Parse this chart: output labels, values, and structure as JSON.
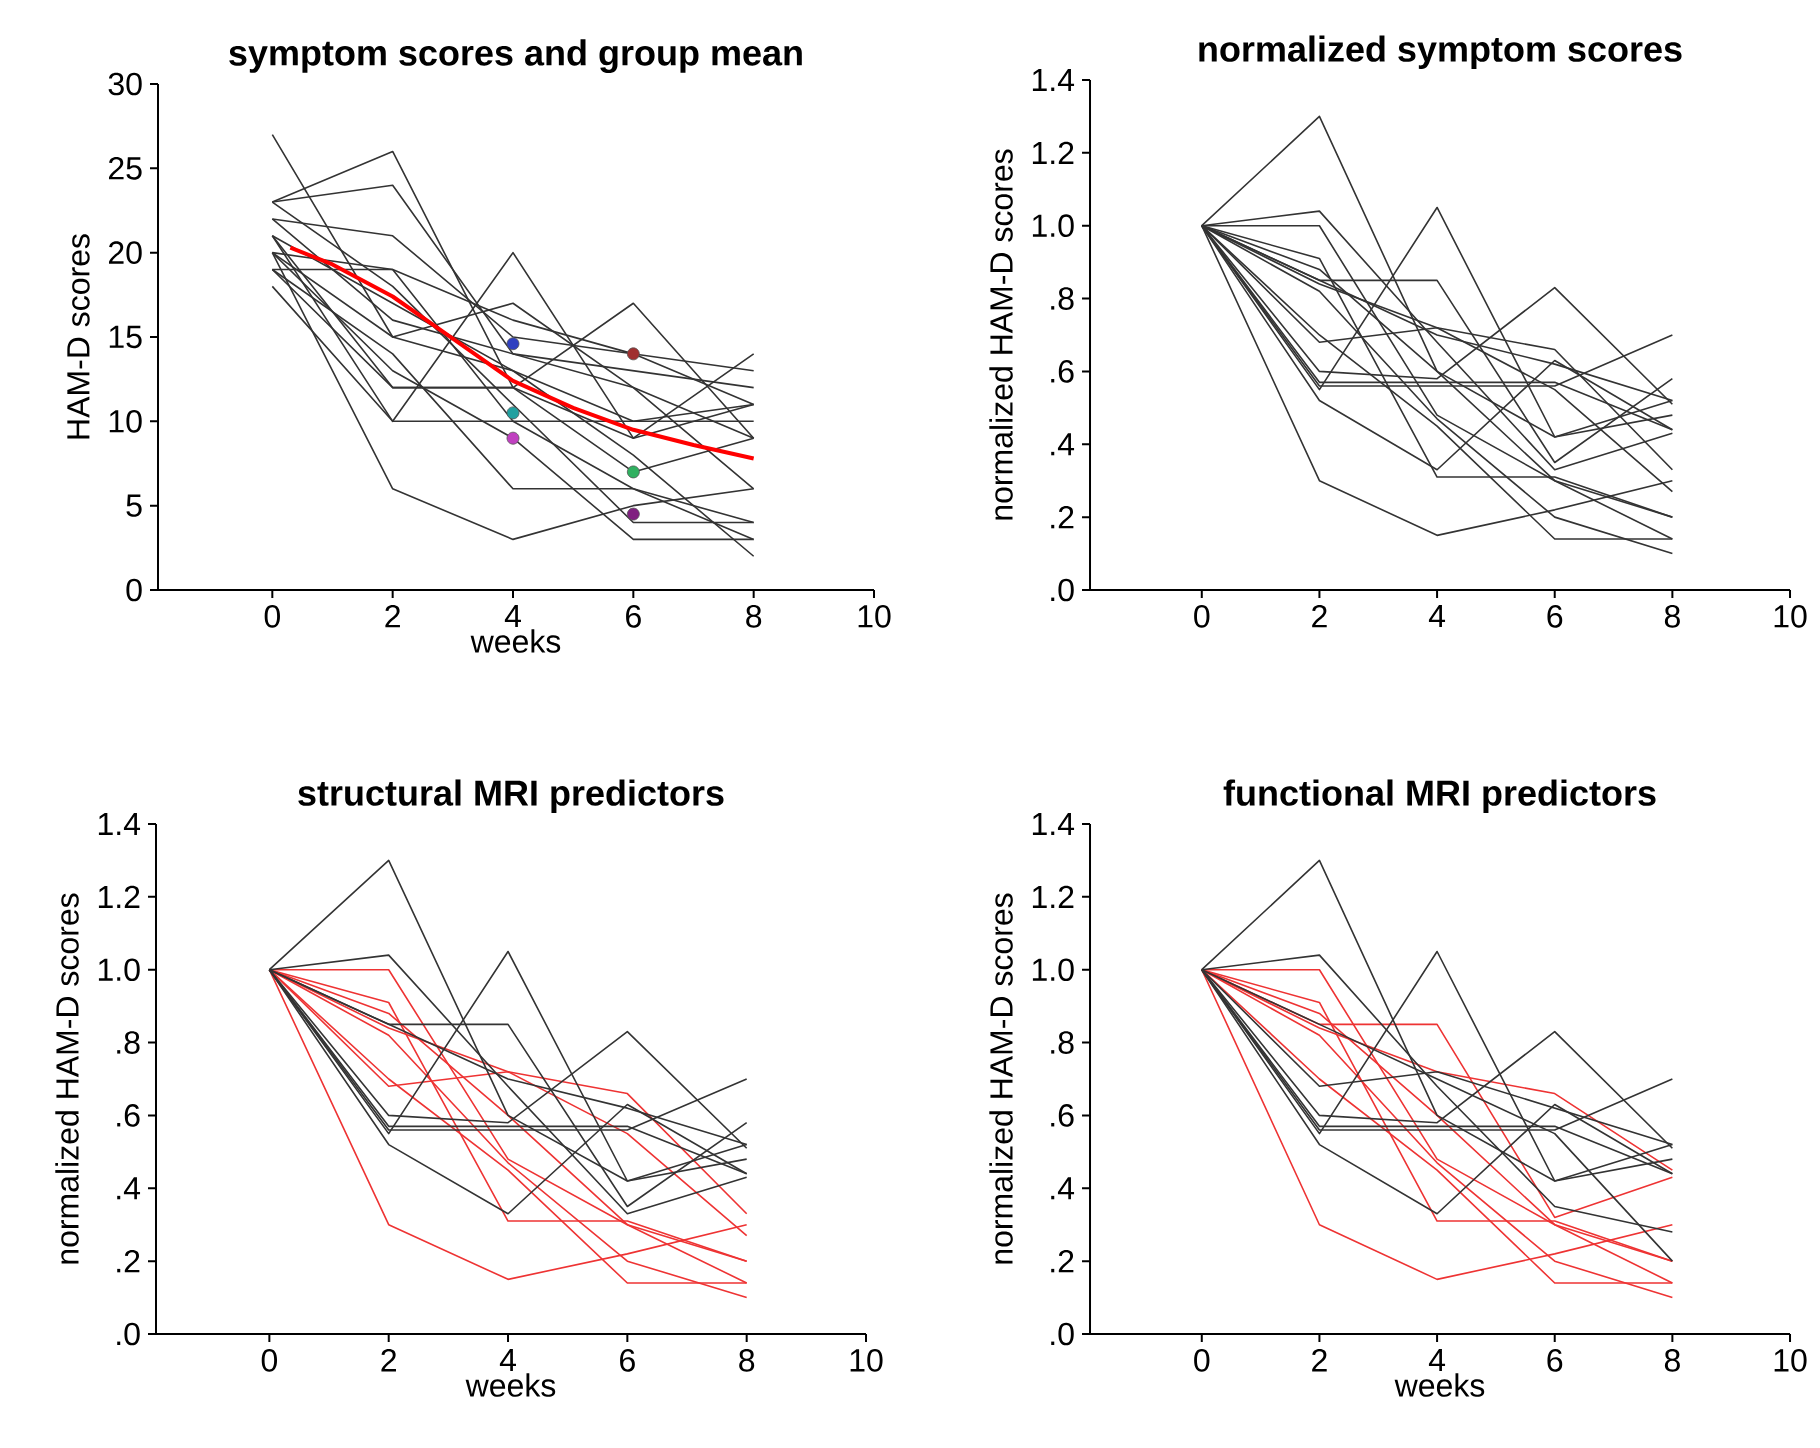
{
  "chart_data": [
    {
      "type": "line",
      "title": "symptom scores and group mean",
      "xlabel": "weeks",
      "ylabel": "HAM-D scores",
      "x": [
        0,
        2,
        4,
        6,
        8
      ],
      "xlim": [
        -1.9,
        10
      ],
      "xticks": [
        0,
        2,
        4,
        6,
        8,
        10
      ],
      "ylim": [
        0,
        30
      ],
      "yticks": [
        0,
        5,
        10,
        15,
        20,
        25,
        30
      ],
      "series": [
        {
          "color": "#333333",
          "values": [
            27,
            15,
            13,
            10,
            10
          ]
        },
        {
          "color": "#333333",
          "values": [
            23,
            26,
            12,
            9,
            11
          ]
        },
        {
          "color": "#333333",
          "values": [
            23,
            24,
            14,
            13,
            12
          ]
        },
        {
          "color": "#333333",
          "values": [
            22,
            21,
            15,
            14,
            13
          ]
        },
        {
          "color": "#333333",
          "values": [
            21,
            10,
            20,
            9,
            14
          ]
        },
        {
          "color": "#333333",
          "values": [
            20,
            19,
            16,
            14,
            11
          ]
        },
        {
          "color": "#333333",
          "values": [
            20,
            6,
            3,
            5,
            6
          ]
        },
        {
          "color": "#333333",
          "values": [
            21,
            12,
            12,
            17,
            9
          ]
        },
        {
          "color": "#333333",
          "values": [
            19,
            19,
            10,
            10,
            11
          ]
        },
        {
          "color": "#333333",
          "values": [
            20,
            15,
            17,
            12,
            9
          ]
        },
        {
          "color": "#333333",
          "values": [
            18,
            10,
            10,
            6,
            4
          ]
        },
        {
          "color": "#333333",
          "values": [
            19,
            14,
            6,
            6,
            3
          ]
        },
        {
          "color": "#333333",
          "values": [
            21,
            17,
            13,
            8,
            2
          ]
        },
        {
          "color": "#333333",
          "values": [
            20,
            13,
            9,
            3,
            3
          ]
        },
        {
          "color": "#333333",
          "values": [
            22,
            16,
            14,
            12,
            6
          ]
        },
        {
          "color": "#333333",
          "values": [
            23,
            18,
            11,
            4,
            4
          ]
        },
        {
          "color": "#333333",
          "values": [
            19,
            12,
            12,
            7,
            9
          ]
        },
        {
          "type": "line",
          "color": "#ff0000",
          "x": [
            0.3,
            1,
            2,
            3,
            4,
            5,
            6,
            7,
            8
          ],
          "values": [
            20.3,
            19.3,
            17.4,
            14.9,
            12.4,
            10.8,
            9.5,
            8.6,
            7.8
          ]
        },
        {
          "type": "scatter",
          "x": [
            4,
            4,
            4,
            6,
            6,
            6
          ],
          "values": [
            14.6,
            10.5,
            9,
            14,
            7,
            4.5
          ],
          "colors": [
            "#3040c0",
            "#20a0a0",
            "#c040c0",
            "#a03030",
            "#30b060",
            "#802080"
          ]
        }
      ]
    },
    {
      "type": "line",
      "title": "normalized symptom scores",
      "ylabel": "normalized HAM-D scores",
      "x": [
        0,
        2,
        4,
        6,
        8
      ],
      "xlim": [
        -1.9,
        10
      ],
      "xticks": [
        0,
        2,
        4,
        6,
        8,
        10
      ],
      "ylim": [
        0,
        1.4
      ],
      "yticks": [
        {
          "value": 0,
          "label": ".0"
        },
        {
          "value": 0.2,
          "label": ".2"
        },
        {
          "value": 0.4,
          "label": ".4"
        },
        {
          "value": 0.6,
          "label": ".6"
        },
        {
          "value": 0.8,
          "label": ".8"
        },
        {
          "value": 1.0,
          "label": "1.0"
        },
        {
          "value": 1.2,
          "label": "1.2"
        },
        {
          "value": 1.4,
          "label": "1.4"
        }
      ],
      "series": [
        {
          "color": "#333333",
          "values": [
            1,
            1.3,
            0.6,
            0.42,
            0.52
          ]
        },
        {
          "color": "#333333",
          "values": [
            1,
            1.04,
            0.68,
            0.33,
            0.43
          ]
        },
        {
          "color": "#333333",
          "values": [
            1,
            0.55,
            1.05,
            0.42,
            0.48
          ]
        },
        {
          "color": "#333333",
          "values": [
            1,
            0.85,
            0.85,
            0.35,
            0.58
          ]
        },
        {
          "color": "#333333",
          "values": [
            1,
            0.57,
            0.57,
            0.57,
            0.44
          ]
        },
        {
          "color": "#333333",
          "values": [
            1,
            0.52,
            0.33,
            0.63,
            0.44
          ]
        },
        {
          "color": "#333333",
          "values": [
            1,
            0.6,
            0.58,
            0.83,
            0.51
          ]
        },
        {
          "color": "#333333",
          "values": [
            1,
            0.85,
            0.7,
            0.62,
            0.52
          ]
        },
        {
          "color": "#333333",
          "values": [
            1,
            0.56,
            0.56,
            0.56,
            0.7
          ]
        },
        {
          "color": "#333333",
          "values": [
            1,
            0.3,
            0.15,
            0.22,
            0.3
          ]
        },
        {
          "color": "#333333",
          "values": [
            1,
            1.0,
            0.48,
            0.3,
            0.14
          ]
        },
        {
          "color": "#333333",
          "values": [
            1,
            0.91,
            0.31,
            0.31,
            0.2
          ]
        },
        {
          "color": "#333333",
          "values": [
            1,
            0.68,
            0.72,
            0.66,
            0.33
          ]
        },
        {
          "color": "#333333",
          "values": [
            1,
            0.82,
            0.47,
            0.2,
            0.1
          ]
        },
        {
          "color": "#333333",
          "values": [
            1,
            0.84,
            0.72,
            0.55,
            0.27
          ]
        },
        {
          "color": "#333333",
          "values": [
            1,
            0.7,
            0.45,
            0.14,
            0.14
          ]
        },
        {
          "color": "#333333",
          "values": [
            1,
            0.88,
            0.6,
            0.3,
            0.2
          ]
        }
      ]
    },
    {
      "type": "line",
      "title": "structural MRI predictors",
      "xlabel": "weeks",
      "ylabel": "normalized HAM-D scores",
      "x": [
        0,
        2,
        4,
        6,
        8
      ],
      "xlim": [
        -1.9,
        10
      ],
      "xticks": [
        0,
        2,
        4,
        6,
        8,
        10
      ],
      "ylim": [
        0,
        1.4
      ],
      "yticks": [
        {
          "value": 0,
          "label": ".0"
        },
        {
          "value": 0.2,
          "label": ".2"
        },
        {
          "value": 0.4,
          "label": ".4"
        },
        {
          "value": 0.6,
          "label": ".6"
        },
        {
          "value": 0.8,
          "label": ".8"
        },
        {
          "value": 1.0,
          "label": "1.0"
        },
        {
          "value": 1.2,
          "label": "1.2"
        },
        {
          "value": 1.4,
          "label": "1.4"
        }
      ],
      "series": [
        {
          "color": "#ee3333",
          "values": [
            1,
            0.3,
            0.15,
            0.22,
            0.3
          ]
        },
        {
          "color": "#ee3333",
          "values": [
            1,
            1.0,
            0.48,
            0.3,
            0.14
          ]
        },
        {
          "color": "#ee3333",
          "values": [
            1,
            0.91,
            0.31,
            0.31,
            0.2
          ]
        },
        {
          "color": "#ee3333",
          "values": [
            1,
            0.68,
            0.72,
            0.66,
            0.33
          ]
        },
        {
          "color": "#ee3333",
          "values": [
            1,
            0.82,
            0.47,
            0.2,
            0.1
          ]
        },
        {
          "color": "#ee3333",
          "values": [
            1,
            0.84,
            0.72,
            0.55,
            0.27
          ]
        },
        {
          "color": "#ee3333",
          "values": [
            1,
            0.7,
            0.45,
            0.14,
            0.14
          ]
        },
        {
          "color": "#ee3333",
          "values": [
            1,
            0.88,
            0.6,
            0.3,
            0.2
          ]
        },
        {
          "color": "#333333",
          "values": [
            1,
            1.3,
            0.6,
            0.42,
            0.52
          ]
        },
        {
          "color": "#333333",
          "values": [
            1,
            1.04,
            0.68,
            0.33,
            0.43
          ]
        },
        {
          "color": "#333333",
          "values": [
            1,
            0.55,
            1.05,
            0.42,
            0.48
          ]
        },
        {
          "color": "#333333",
          "values": [
            1,
            0.85,
            0.85,
            0.35,
            0.58
          ]
        },
        {
          "color": "#333333",
          "values": [
            1,
            0.57,
            0.57,
            0.57,
            0.44
          ]
        },
        {
          "color": "#333333",
          "values": [
            1,
            0.52,
            0.33,
            0.63,
            0.44
          ]
        },
        {
          "color": "#333333",
          "values": [
            1,
            0.6,
            0.58,
            0.83,
            0.51
          ]
        },
        {
          "color": "#333333",
          "values": [
            1,
            0.85,
            0.7,
            0.62,
            0.52
          ]
        },
        {
          "color": "#333333",
          "values": [
            1,
            0.56,
            0.56,
            0.56,
            0.7
          ]
        }
      ]
    },
    {
      "type": "line",
      "title": "functional MRI predictors",
      "xlabel": "weeks",
      "ylabel": "normalized HAM-D scores",
      "x": [
        0,
        2,
        4,
        6,
        8
      ],
      "xlim": [
        -1.9,
        10
      ],
      "xticks": [
        0,
        2,
        4,
        6,
        8,
        10
      ],
      "ylim": [
        0,
        1.4
      ],
      "yticks": [
        {
          "value": 0,
          "label": ".0"
        },
        {
          "value": 0.2,
          "label": ".2"
        },
        {
          "value": 0.4,
          "label": ".4"
        },
        {
          "value": 0.6,
          "label": ".6"
        },
        {
          "value": 0.8,
          "label": ".8"
        },
        {
          "value": 1.0,
          "label": "1.0"
        },
        {
          "value": 1.2,
          "label": "1.2"
        },
        {
          "value": 1.4,
          "label": "1.4"
        }
      ],
      "series": [
        {
          "color": "#ee3333",
          "values": [
            1,
            0.3,
            0.15,
            0.22,
            0.3
          ]
        },
        {
          "color": "#ee3333",
          "values": [
            1,
            1.0,
            0.48,
            0.3,
            0.14
          ]
        },
        {
          "color": "#ee3333",
          "values": [
            1,
            0.91,
            0.31,
            0.31,
            0.2
          ]
        },
        {
          "color": "#ee3333",
          "values": [
            1,
            0.85,
            0.85,
            0.32,
            0.43
          ]
        },
        {
          "color": "#ee3333",
          "values": [
            1,
            0.82,
            0.47,
            0.2,
            0.1
          ]
        },
        {
          "color": "#ee3333",
          "values": [
            1,
            0.84,
            0.72,
            0.66,
            0.45
          ]
        },
        {
          "color": "#ee3333",
          "values": [
            1,
            0.7,
            0.45,
            0.14,
            0.14
          ]
        },
        {
          "color": "#ee3333",
          "values": [
            1,
            0.88,
            0.6,
            0.3,
            0.2
          ]
        },
        {
          "color": "#333333",
          "values": [
            1,
            1.3,
            0.6,
            0.42,
            0.52
          ]
        },
        {
          "color": "#333333",
          "values": [
            1,
            1.04,
            0.68,
            0.35,
            0.28
          ]
        },
        {
          "color": "#333333",
          "values": [
            1,
            0.55,
            1.05,
            0.42,
            0.48
          ]
        },
        {
          "color": "#333333",
          "values": [
            1,
            0.68,
            0.72,
            0.62,
            0.52
          ]
        },
        {
          "color": "#333333",
          "values": [
            1,
            0.57,
            0.57,
            0.57,
            0.44
          ]
        },
        {
          "color": "#333333",
          "values": [
            1,
            0.52,
            0.33,
            0.63,
            0.44
          ]
        },
        {
          "color": "#333333",
          "values": [
            1,
            0.6,
            0.58,
            0.83,
            0.51
          ]
        },
        {
          "color": "#333333",
          "values": [
            1,
            0.85,
            0.7,
            0.55,
            0.2
          ]
        },
        {
          "color": "#333333",
          "values": [
            1,
            0.56,
            0.56,
            0.56,
            0.7
          ]
        }
      ]
    }
  ]
}
